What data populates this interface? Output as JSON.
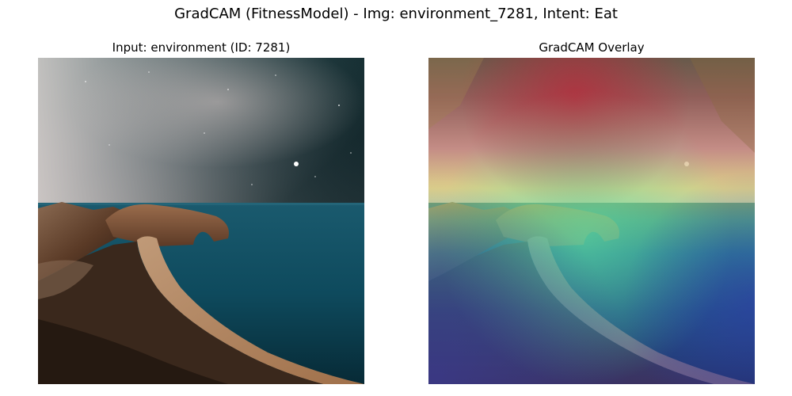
{
  "figure": {
    "title": "GradCAM (FitnessModel) - Img: environment_7281, Intent: Eat"
  },
  "panels": [
    {
      "title": "Input: environment (ID: 7281)",
      "content": "night-sky-coastal-landscape-photo"
    },
    {
      "title": "GradCAM Overlay",
      "content": "gradcam-heatmap-overlay"
    }
  ],
  "colors": {
    "sky_dark": "#1d3a3e",
    "sky_haze": "#c9c0bf",
    "horizon_pink": "#e3c7c8",
    "sea": "#0d4a5c",
    "sea_dark": "#062838",
    "cliff": "#7a4e34",
    "beach": "#b08865",
    "foreground": "#2a1c14",
    "heat_hot": "#b02020",
    "heat_warm": "#f0e040",
    "heat_mid": "#30d0b0",
    "heat_cool": "#3040b0"
  }
}
